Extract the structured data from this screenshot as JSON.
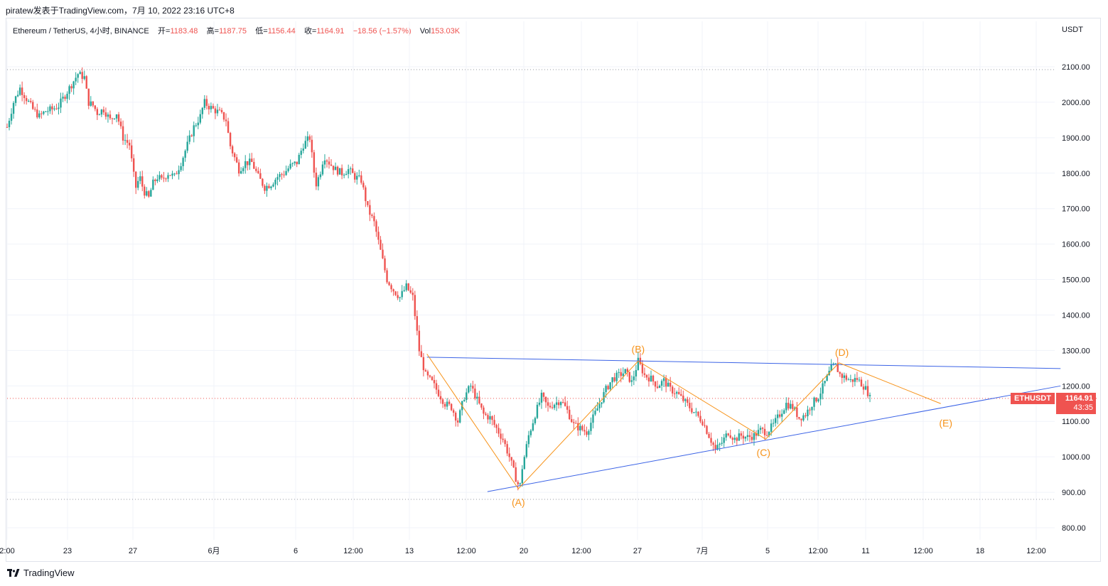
{
  "caption": "piratew发表于TradingView.com，7月 10, 2022 23:16 UTC+8",
  "symbol_bar": {
    "name": "Ethereum / TetherUS, 4小时, BINANCE",
    "open_label": "开=",
    "open_value": "1183.48",
    "high_label": "高=",
    "high_value": "1187.75",
    "low_label": "低=",
    "low_value": "1156.44",
    "close_label": "收=",
    "close_value": "1164.91",
    "change": "−18.56 (−1.57%)",
    "vol_label": "Vol",
    "vol_value": "153.03K"
  },
  "price_badge": {
    "symbol": "ETHUSDT",
    "price": "1164.91",
    "countdown": "43:35"
  },
  "footer": {
    "brand": "TradingView"
  },
  "colors": {
    "up": "#26a69a",
    "down": "#ef5350",
    "pattern": "#f7931a",
    "trendline": "#3b63e6",
    "grid": "#f0f3fa",
    "axis_text": "#131722"
  },
  "chart_data": {
    "type": "candlestick",
    "y_axis_title": "USDT",
    "ylim": [
      730,
      2190
    ],
    "y_ticks": [
      800,
      900,
      1000,
      1100,
      1200,
      1300,
      1400,
      1500,
      1600,
      1700,
      1800,
      1900,
      2000,
      2100
    ],
    "y_tick_labels": [
      "800.00",
      "900.00",
      "1000.00",
      "1100.00",
      "1200.00",
      "1300.00",
      "1400.00",
      "1500.00",
      "1600.00",
      "1700.00",
      "1800.00",
      "1900.00",
      "2000.00",
      "2100.00"
    ],
    "x_range_days": [
      0,
      58.3
    ],
    "x_ticks": [
      {
        "day": -0.1,
        "label": "2:00"
      },
      {
        "day": 4.95,
        "label": "23"
      },
      {
        "day": 9.95,
        "label": "27"
      },
      {
        "day": 15.95,
        "label": "6月"
      },
      {
        "day": 21.95,
        "label": "6"
      },
      {
        "day": 26.45,
        "label": "12:00"
      },
      {
        "day": 29.95,
        "label": "13"
      },
      {
        "day": 34.45,
        "label": "12:00"
      },
      {
        "day": 38.95,
        "label": "20"
      },
      {
        "day": 43.45,
        "label": "12:00"
      },
      {
        "day": 47.95,
        "label": "27"
      },
      {
        "day": 52.35,
        "label": "7月"
      },
      {
        "day": 57.45,
        "label": "5"
      },
      {
        "day": 61.95,
        "label": "12:00"
      },
      {
        "day": 66.45,
        "label": "11"
      },
      {
        "day": 70.95,
        "label": "12:00"
      },
      {
        "day": 75.45,
        "label": "18"
      },
      {
        "day": 79.95,
        "label": "12:00"
      }
    ],
    "current_price": 1164.91,
    "dotted_levels": [
      2092,
      880
    ],
    "price_path": [
      [
        0,
        1930
      ],
      [
        0.5,
        2000
      ],
      [
        1,
        2040
      ],
      [
        1.5,
        2010
      ],
      [
        2,
        1980
      ],
      [
        2.5,
        1960
      ],
      [
        3,
        1975
      ],
      [
        3.5,
        1980
      ],
      [
        4,
        1990
      ],
      [
        4.5,
        2020
      ],
      [
        5,
        2050
      ],
      [
        5.5,
        2080
      ],
      [
        6,
        2070
      ],
      [
        6.3,
        2000
      ],
      [
        6.7,
        1990
      ],
      [
        7,
        1970
      ],
      [
        7.5,
        1980
      ],
      [
        8,
        1950
      ],
      [
        8.5,
        1970
      ],
      [
        9,
        1900
      ],
      [
        9.5,
        1880
      ],
      [
        9.8,
        1800
      ],
      [
        10,
        1760
      ],
      [
        10.3,
        1790
      ],
      [
        10.6,
        1750
      ],
      [
        11,
        1730
      ],
      [
        11.3,
        1770
      ],
      [
        11.7,
        1790
      ],
      [
        12,
        1780
      ],
      [
        12.5,
        1800
      ],
      [
        13,
        1790
      ],
      [
        13.5,
        1830
      ],
      [
        14,
        1880
      ],
      [
        14.5,
        1930
      ],
      [
        15,
        1960
      ],
      [
        15.3,
        2000
      ],
      [
        15.6,
        1990
      ],
      [
        16,
        1980
      ],
      [
        16.5,
        1970
      ],
      [
        17,
        1950
      ],
      [
        17.3,
        1880
      ],
      [
        17.7,
        1840
      ],
      [
        18,
        1810
      ],
      [
        18.5,
        1830
      ],
      [
        19,
        1830
      ],
      [
        19.5,
        1790
      ],
      [
        20,
        1760
      ],
      [
        20.5,
        1770
      ],
      [
        21,
        1790
      ],
      [
        21.5,
        1800
      ],
      [
        22,
        1820
      ],
      [
        22.5,
        1830
      ],
      [
        23,
        1880
      ],
      [
        23.5,
        1900
      ],
      [
        23.8,
        1810
      ],
      [
        24,
        1770
      ],
      [
        24.3,
        1800
      ],
      [
        24.6,
        1850
      ],
      [
        25,
        1830
      ],
      [
        25.5,
        1810
      ],
      [
        26,
        1800
      ],
      [
        26.5,
        1810
      ],
      [
        27,
        1790
      ],
      [
        27.5,
        1780
      ],
      [
        28,
        1700
      ],
      [
        28.5,
        1660
      ],
      [
        29,
        1580
      ],
      [
        29.5,
        1500
      ],
      [
        30,
        1470
      ],
      [
        30.5,
        1450
      ],
      [
        31,
        1480
      ],
      [
        31.5,
        1450
      ],
      [
        32,
        1300
      ],
      [
        32.5,
        1230
      ],
      [
        33,
        1210
      ],
      [
        33.5,
        1180
      ],
      [
        34,
        1150
      ],
      [
        34.5,
        1140
      ],
      [
        35,
        1100
      ],
      [
        35.5,
        1170
      ],
      [
        36,
        1200
      ],
      [
        36.5,
        1160
      ],
      [
        37,
        1120
      ],
      [
        37.5,
        1110
      ],
      [
        38,
        1080
      ],
      [
        38.5,
        1050
      ],
      [
        39,
        1000
      ],
      [
        39.5,
        940
      ],
      [
        39.8,
        910
      ],
      [
        40,
        970
      ],
      [
        40.5,
        1060
      ],
      [
        41,
        1120
      ],
      [
        41.5,
        1170
      ],
      [
        42,
        1140
      ],
      [
        42.5,
        1150
      ],
      [
        43,
        1160
      ],
      [
        43.5,
        1130
      ],
      [
        44,
        1090
      ],
      [
        44.5,
        1080
      ],
      [
        45,
        1070
      ],
      [
        45.5,
        1110
      ],
      [
        46,
        1150
      ],
      [
        46.5,
        1190
      ],
      [
        47,
        1220
      ],
      [
        47.5,
        1230
      ],
      [
        48,
        1240
      ],
      [
        48.5,
        1210
      ],
      [
        49,
        1270
      ],
      [
        49.5,
        1230
      ],
      [
        50,
        1220
      ],
      [
        50.5,
        1200
      ],
      [
        51,
        1215
      ],
      [
        51.5,
        1190
      ],
      [
        52,
        1180
      ],
      [
        52.5,
        1160
      ],
      [
        53,
        1140
      ],
      [
        53.5,
        1120
      ],
      [
        54,
        1100
      ],
      [
        54.5,
        1060
      ],
      [
        55,
        1020
      ],
      [
        55.5,
        1040
      ],
      [
        56,
        1070
      ],
      [
        56.5,
        1050
      ],
      [
        57,
        1060
      ],
      [
        57.5,
        1055
      ],
      [
        58,
        1060
      ],
      [
        58.5,
        1075
      ],
      [
        59,
        1070
      ],
      [
        59.5,
        1090
      ],
      [
        60,
        1120
      ],
      [
        60.5,
        1150
      ],
      [
        61,
        1140
      ],
      [
        61.5,
        1110
      ],
      [
        62,
        1120
      ],
      [
        62.5,
        1150
      ],
      [
        63,
        1170
      ],
      [
        63.5,
        1210
      ],
      [
        64,
        1250
      ],
      [
        64.3,
        1260
      ],
      [
        64.7,
        1230
      ],
      [
        65,
        1225
      ],
      [
        65.5,
        1215
      ],
      [
        66,
        1220
      ],
      [
        66.5,
        1200
      ],
      [
        66.8,
        1185
      ],
      [
        67,
        1165
      ]
    ],
    "elliott_points": [
      {
        "label": "(A)",
        "day": 39.7,
        "price": 910
      },
      {
        "label": "(B)",
        "day": 49.0,
        "price": 1270
      },
      {
        "label": "(C)",
        "day": 58.9,
        "price": 1050
      },
      {
        "label": "(D)",
        "day": 64.6,
        "price": 1265
      },
      {
        "label": "(E)",
        "day": 72.5,
        "price": 1150
      }
    ],
    "triangle_lines": [
      {
        "name": "resistance",
        "from": {
          "day": 32.6,
          "price": 1281
        },
        "to": {
          "day": 81.8,
          "price": 1249
        }
      },
      {
        "name": "support",
        "from": {
          "day": 37.3,
          "price": 902
        },
        "to": {
          "day": 81.8,
          "price": 1200
        }
      }
    ]
  }
}
